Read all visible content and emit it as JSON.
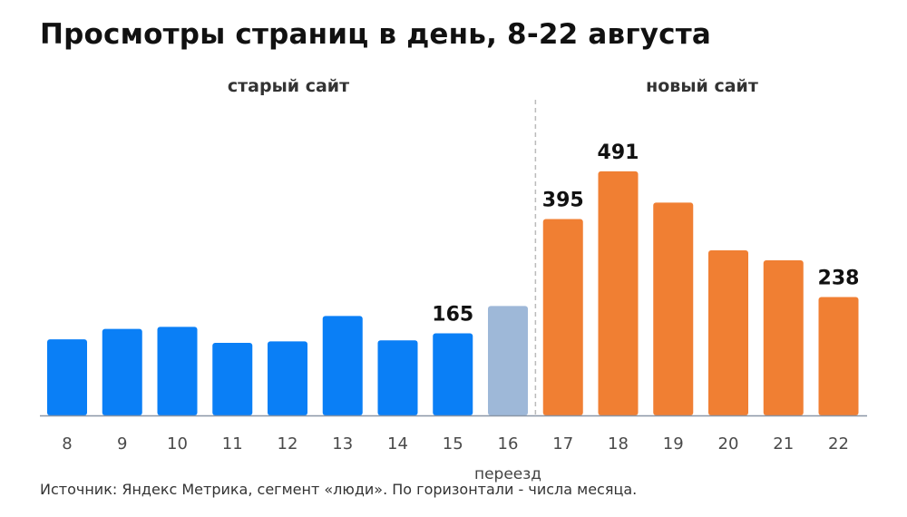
{
  "title": "Просмотры страниц в день, 8-22 августа",
  "source_note": "Источник: Яндекс Метрика, сегмент «люди». По горизонтали - числа месяца.",
  "colors": {
    "old": "#0a7ff6",
    "move": "#9eb8d8",
    "new": "#f07f33",
    "axis": "#8a96a6",
    "divider": "#bbbbbb",
    "text": "#111111",
    "muted": "#4a4a4a"
  },
  "chart_data": {
    "type": "bar",
    "categories": [
      "8",
      "9",
      "10",
      "11",
      "12",
      "13",
      "14",
      "15",
      "16",
      "17",
      "18",
      "19",
      "20",
      "21",
      "22"
    ],
    "values": [
      153,
      174,
      178,
      146,
      149,
      200,
      151,
      165,
      220,
      395,
      491,
      428,
      332,
      312,
      238
    ],
    "groups": [
      "old",
      "old",
      "old",
      "old",
      "old",
      "old",
      "old",
      "old",
      "move",
      "new",
      "new",
      "new",
      "new",
      "new",
      "new"
    ],
    "value_labels": [
      {
        "index": 7,
        "text": "165"
      },
      {
        "index": 9,
        "text": "395"
      },
      {
        "index": 10,
        "text": "491"
      },
      {
        "index": 14,
        "text": "238"
      }
    ],
    "segments": {
      "old_label": "старый сайт",
      "new_label": "новый сайт",
      "divider_after_category": "16"
    },
    "annotation": {
      "category": "16",
      "text": "переезд"
    },
    "ylim": [
      0,
      540
    ],
    "xlabel": "",
    "ylabel": "",
    "grid": false,
    "legend": "none"
  }
}
